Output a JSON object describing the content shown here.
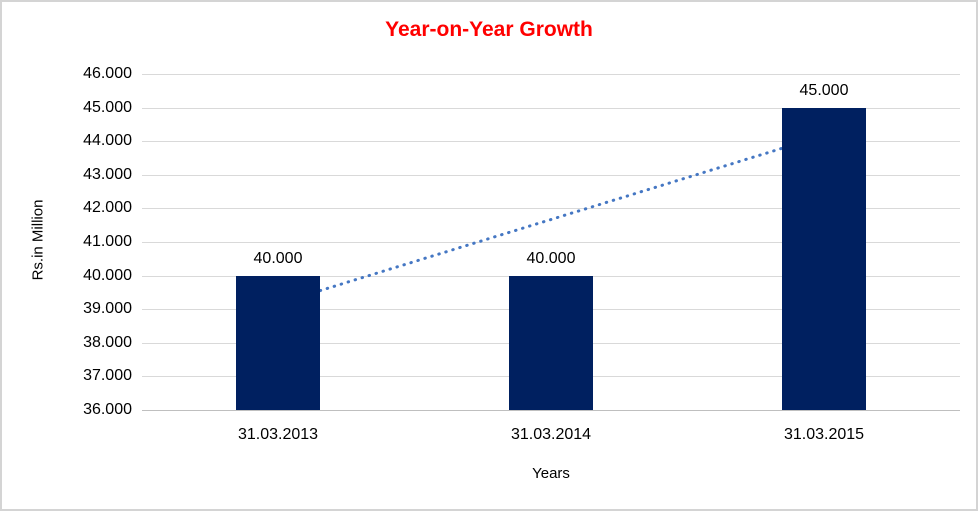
{
  "chart": {
    "title": "Year-on-Year Growth",
    "ylabel": "Rs.in Million",
    "xlabel": "Years"
  },
  "chart_data": {
    "type": "bar",
    "title": "Year-on-Year Growth",
    "xlabel": "Years",
    "ylabel": "Rs.in Million",
    "categories": [
      "31.03.2013",
      "31.03.2014",
      "31.03.2015"
    ],
    "values": [
      40.0,
      40.0,
      45.0
    ],
    "value_labels": [
      "40.000",
      "40.000",
      "45.000"
    ],
    "y_ticks": [
      "46.000",
      "45.000",
      "44.000",
      "43.000",
      "42.000",
      "41.000",
      "40.000",
      "39.000",
      "38.000",
      "37.000",
      "36.000"
    ],
    "ylim": [
      36,
      46
    ],
    "grid": true,
    "legend": "none",
    "trendline": {
      "style": "dotted",
      "start_value": 39.17,
      "end_value": 44.17
    },
    "colors": {
      "bar": "#002060",
      "title": "#ff0000",
      "trendline": "#4577c3",
      "gridline": "#d9d9d9",
      "axis_line": "#bfbfbf",
      "text": "#000000"
    }
  }
}
